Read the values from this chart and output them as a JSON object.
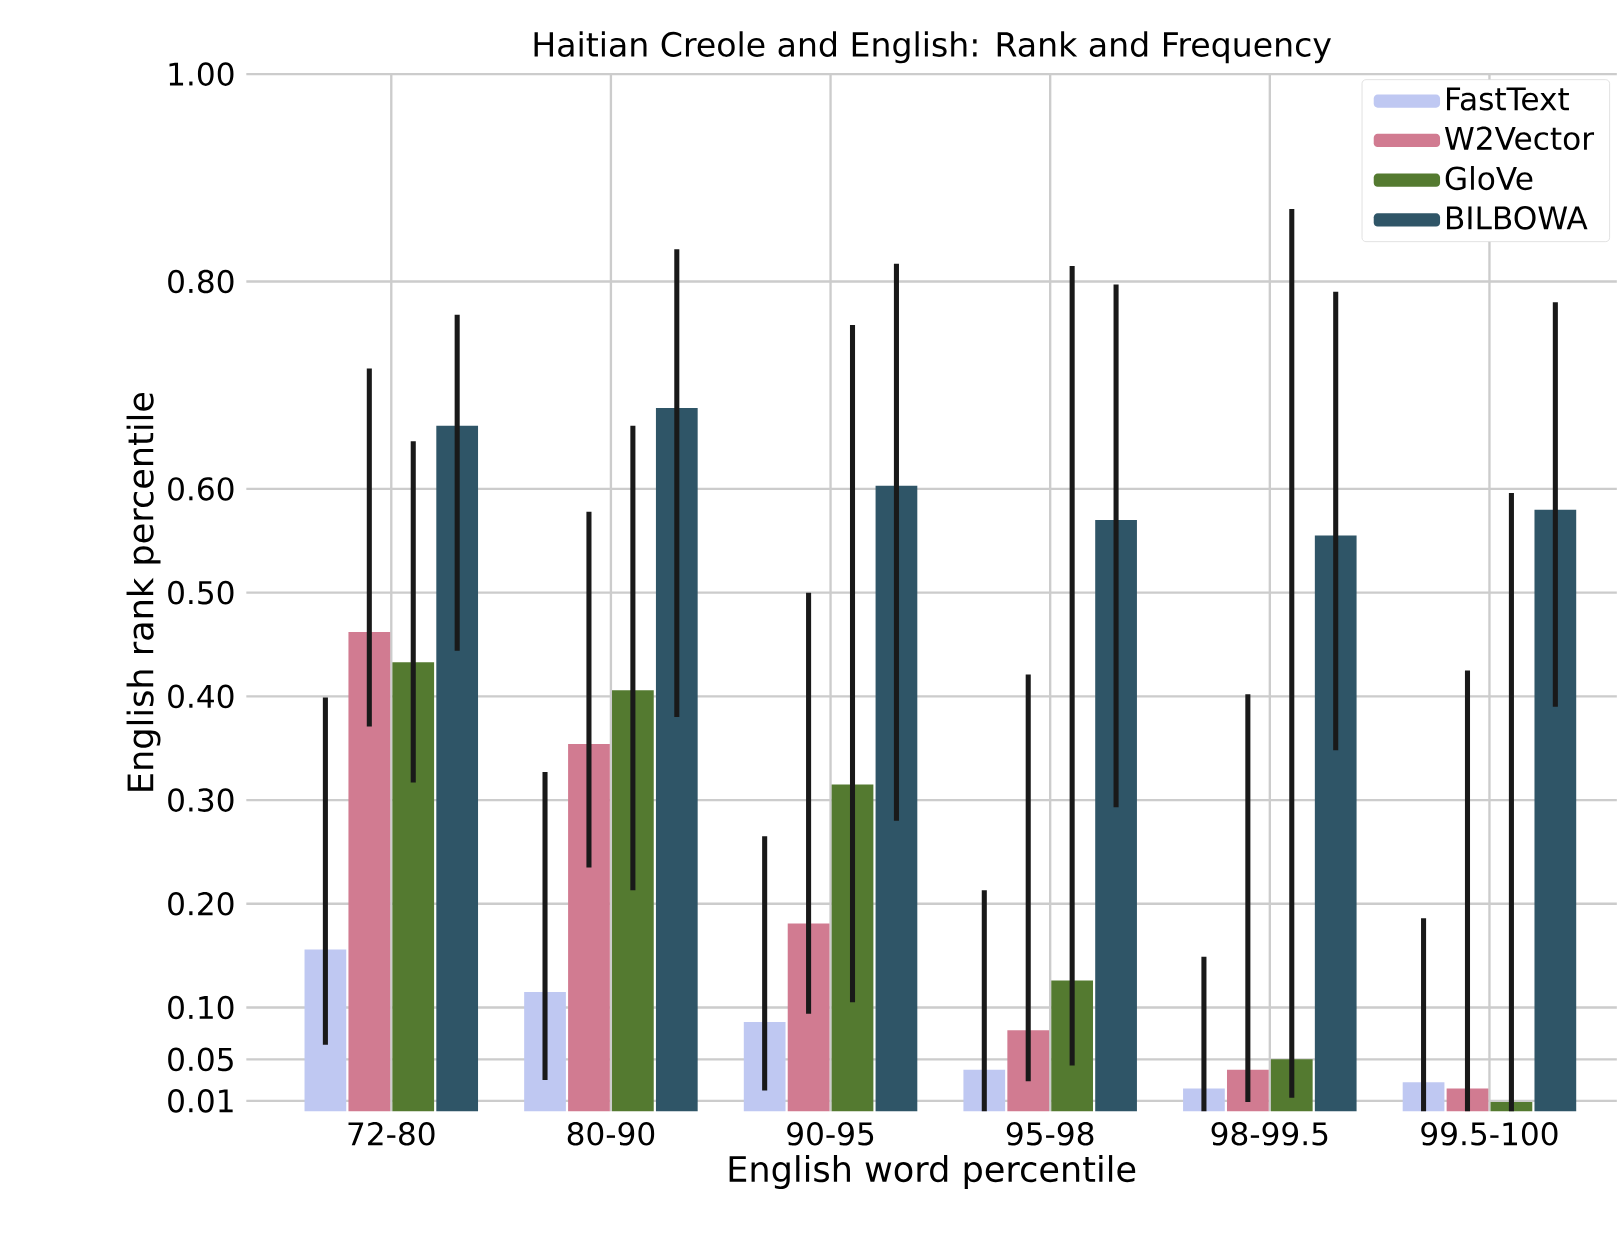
{
  "chart_data": {
    "type": "bar",
    "title": "Haitian Creole and English: Rank and Frequency",
    "xlabel": "English word percentile",
    "ylabel": "English rank percentile",
    "categories": [
      "72-80",
      "80-90",
      "90-95",
      "95-98",
      "98-99.5",
      "99.5-100"
    ],
    "series": [
      {
        "name": "FastText",
        "color": "#bfc8f2",
        "values": [
          0.156,
          0.115,
          0.086,
          0.04,
          0.022,
          0.028
        ],
        "errors": [
          [
            0.064,
            0.399
          ],
          [
            0.03,
            0.327
          ],
          [
            0.02,
            0.265
          ],
          [
            0.0,
            0.213
          ],
          [
            0.0,
            0.149
          ],
          [
            0.0,
            0.186
          ]
        ]
      },
      {
        "name": "W2Vector",
        "color": "#d17b91",
        "values": [
          0.462,
          0.354,
          0.181,
          0.078,
          0.04,
          0.022
        ],
        "errors": [
          [
            0.371,
            0.716
          ],
          [
            0.235,
            0.578
          ],
          [
            0.094,
            0.5
          ],
          [
            0.029,
            0.421
          ],
          [
            0.009,
            0.402
          ],
          [
            0.0,
            0.425
          ]
        ]
      },
      {
        "name": "GloVe",
        "color": "#547a30",
        "values": [
          0.433,
          0.406,
          0.315,
          0.126,
          0.05,
          0.009
        ],
        "errors": [
          [
            0.317,
            0.646
          ],
          [
            0.213,
            0.661
          ],
          [
            0.105,
            0.758
          ],
          [
            0.044,
            0.815
          ],
          [
            0.013,
            0.87
          ],
          [
            0.0,
            0.596
          ]
        ]
      },
      {
        "name": "BILBOWA",
        "color": "#2f5567",
        "values": [
          0.661,
          0.678,
          0.603,
          0.57,
          0.555,
          0.58
        ],
        "errors": [
          [
            0.444,
            0.768
          ],
          [
            0.38,
            0.831
          ],
          [
            0.28,
            0.817
          ],
          [
            0.293,
            0.797
          ],
          [
            0.348,
            0.79
          ],
          [
            0.39,
            0.78
          ]
        ]
      }
    ],
    "ylim": [
      0,
      1
    ],
    "yticks": [
      {
        "value": 0.01,
        "label": "0.01"
      },
      {
        "value": 0.05,
        "label": "0.05"
      },
      {
        "value": 0.1,
        "label": "0.10"
      },
      {
        "value": 0.2,
        "label": "0.20"
      },
      {
        "value": 0.3,
        "label": "0.30"
      },
      {
        "value": 0.4,
        "label": "0.40"
      },
      {
        "value": 0.5,
        "label": "0.50"
      },
      {
        "value": 0.6,
        "label": "0.60"
      },
      {
        "value": 0.8,
        "label": "0.80"
      },
      {
        "value": 1.0,
        "label": "1.00"
      }
    ],
    "grid": true,
    "legend": "top right"
  }
}
